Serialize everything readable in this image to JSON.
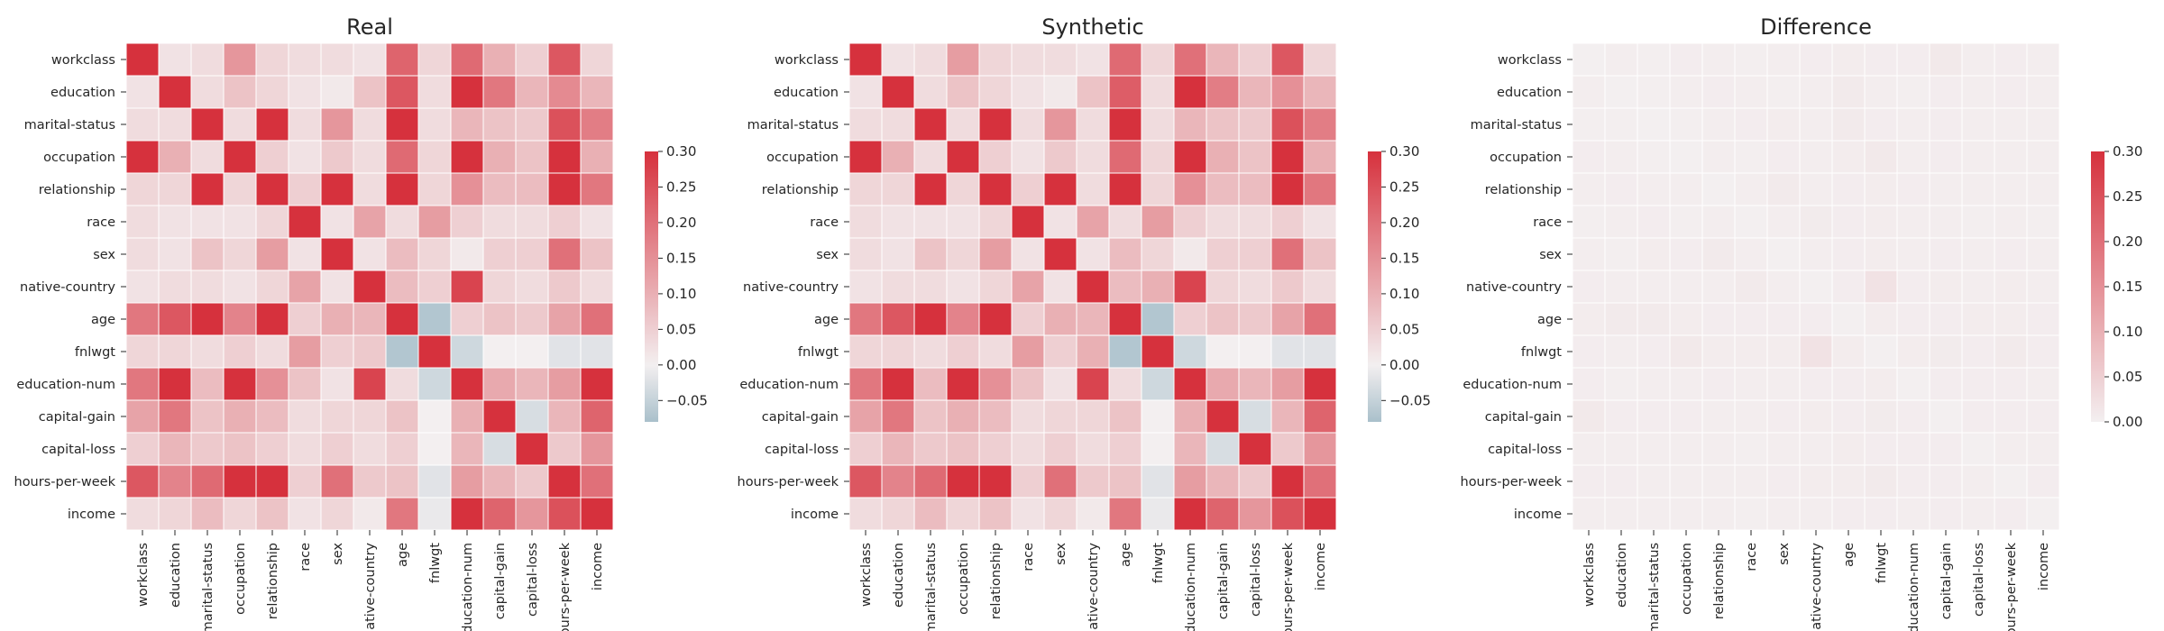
{
  "chart_data": [
    {
      "type": "heatmap",
      "title": "Real",
      "labels": [
        "workclass",
        "education",
        "marital-status",
        "occupation",
        "relationship",
        "race",
        "sex",
        "native-country",
        "age",
        "fnlwgt",
        "education-num",
        "capital-gain",
        "capital-loss",
        "hours-per-week",
        "income"
      ],
      "matrix": [
        [
          0.3,
          0.02,
          0.03,
          0.14,
          0.04,
          0.03,
          0.03,
          0.02,
          0.22,
          0.04,
          0.21,
          0.1,
          0.05,
          0.24,
          0.04
        ],
        [
          0.02,
          0.3,
          0.03,
          0.07,
          0.04,
          0.02,
          0.01,
          0.07,
          0.24,
          0.03,
          0.3,
          0.19,
          0.09,
          0.16,
          0.09
        ],
        [
          0.03,
          0.03,
          0.3,
          0.03,
          0.3,
          0.03,
          0.14,
          0.03,
          0.3,
          0.03,
          0.09,
          0.07,
          0.06,
          0.25,
          0.18
        ],
        [
          0.3,
          0.1,
          0.03,
          0.3,
          0.05,
          0.02,
          0.06,
          0.03,
          0.21,
          0.04,
          0.3,
          0.1,
          0.07,
          0.3,
          0.1
        ],
        [
          0.04,
          0.04,
          0.3,
          0.04,
          0.3,
          0.05,
          0.3,
          0.03,
          0.3,
          0.04,
          0.15,
          0.08,
          0.08,
          0.3,
          0.19
        ],
        [
          0.03,
          0.02,
          0.02,
          0.02,
          0.04,
          0.3,
          0.02,
          0.12,
          0.03,
          0.13,
          0.05,
          0.03,
          0.03,
          0.05,
          0.02
        ],
        [
          0.03,
          0.02,
          0.07,
          0.04,
          0.13,
          0.02,
          0.3,
          0.02,
          0.08,
          0.04,
          0.01,
          0.05,
          0.05,
          0.2,
          0.07
        ],
        [
          0.02,
          0.03,
          0.03,
          0.02,
          0.04,
          0.12,
          0.02,
          0.3,
          0.08,
          0.05,
          0.27,
          0.04,
          0.03,
          0.06,
          0.03
        ],
        [
          0.19,
          0.24,
          0.3,
          0.17,
          0.3,
          0.05,
          0.1,
          0.09,
          0.3,
          -0.07,
          0.05,
          0.07,
          0.06,
          0.12,
          0.2
        ],
        [
          0.04,
          0.04,
          0.03,
          0.05,
          0.03,
          0.13,
          0.05,
          0.06,
          -0.07,
          0.3,
          -0.04,
          0.0,
          0.0,
          -0.02,
          -0.02
        ],
        [
          0.19,
          0.3,
          0.08,
          0.3,
          0.15,
          0.07,
          0.02,
          0.27,
          0.03,
          -0.04,
          0.3,
          0.11,
          0.09,
          0.13,
          0.3
        ],
        [
          0.12,
          0.19,
          0.07,
          0.1,
          0.08,
          0.03,
          0.04,
          0.04,
          0.07,
          0.0,
          0.1,
          0.3,
          -0.03,
          0.09,
          0.22
        ],
        [
          0.05,
          0.09,
          0.06,
          0.07,
          0.05,
          0.03,
          0.05,
          0.03,
          0.05,
          0.0,
          0.09,
          -0.03,
          0.3,
          0.06,
          0.14
        ],
        [
          0.24,
          0.17,
          0.21,
          0.3,
          0.3,
          0.05,
          0.2,
          0.06,
          0.07,
          -0.02,
          0.13,
          0.09,
          0.06,
          0.3,
          0.2
        ],
        [
          0.03,
          0.04,
          0.08,
          0.04,
          0.07,
          0.02,
          0.04,
          0.01,
          0.19,
          -0.01,
          0.3,
          0.22,
          0.14,
          0.25,
          0.3
        ]
      ],
      "colorbar": {
        "min": -0.08,
        "max": 0.3,
        "ticks": [
          0.3,
          0.25,
          0.2,
          0.15,
          0.1,
          0.05,
          0.0,
          -0.05
        ]
      }
    },
    {
      "type": "heatmap",
      "title": "Synthetic",
      "labels": [
        "workclass",
        "education",
        "marital-status",
        "occupation",
        "relationship",
        "race",
        "sex",
        "native-country",
        "age",
        "fnlwgt",
        "education-num",
        "capital-gain",
        "capital-loss",
        "hours-per-week",
        "income"
      ],
      "matrix": [
        [
          0.3,
          0.02,
          0.03,
          0.13,
          0.04,
          0.03,
          0.03,
          0.02,
          0.21,
          0.04,
          0.2,
          0.09,
          0.05,
          0.24,
          0.04
        ],
        [
          0.02,
          0.3,
          0.03,
          0.07,
          0.04,
          0.02,
          0.01,
          0.07,
          0.23,
          0.03,
          0.3,
          0.18,
          0.09,
          0.15,
          0.09
        ],
        [
          0.03,
          0.03,
          0.3,
          0.03,
          0.3,
          0.03,
          0.14,
          0.03,
          0.3,
          0.03,
          0.09,
          0.07,
          0.06,
          0.25,
          0.18
        ],
        [
          0.3,
          0.1,
          0.03,
          0.3,
          0.05,
          0.02,
          0.06,
          0.03,
          0.21,
          0.04,
          0.3,
          0.1,
          0.07,
          0.3,
          0.1
        ],
        [
          0.04,
          0.04,
          0.3,
          0.04,
          0.3,
          0.05,
          0.3,
          0.03,
          0.3,
          0.04,
          0.15,
          0.08,
          0.08,
          0.3,
          0.19
        ],
        [
          0.03,
          0.02,
          0.02,
          0.02,
          0.04,
          0.3,
          0.02,
          0.12,
          0.03,
          0.13,
          0.05,
          0.03,
          0.03,
          0.05,
          0.02
        ],
        [
          0.03,
          0.02,
          0.07,
          0.04,
          0.13,
          0.02,
          0.3,
          0.02,
          0.08,
          0.04,
          0.01,
          0.05,
          0.05,
          0.2,
          0.07
        ],
        [
          0.02,
          0.03,
          0.03,
          0.02,
          0.04,
          0.12,
          0.02,
          0.3,
          0.08,
          0.1,
          0.27,
          0.04,
          0.03,
          0.06,
          0.03
        ],
        [
          0.19,
          0.24,
          0.3,
          0.17,
          0.3,
          0.05,
          0.1,
          0.09,
          0.3,
          -0.07,
          0.05,
          0.07,
          0.06,
          0.12,
          0.2
        ],
        [
          0.04,
          0.04,
          0.03,
          0.05,
          0.03,
          0.13,
          0.05,
          0.1,
          -0.07,
          0.3,
          -0.04,
          0.0,
          0.0,
          -0.02,
          -0.02
        ],
        [
          0.19,
          0.3,
          0.08,
          0.3,
          0.15,
          0.07,
          0.02,
          0.27,
          0.03,
          -0.04,
          0.3,
          0.11,
          0.09,
          0.13,
          0.3
        ],
        [
          0.12,
          0.19,
          0.07,
          0.1,
          0.08,
          0.03,
          0.04,
          0.04,
          0.07,
          0.0,
          0.1,
          0.3,
          -0.03,
          0.09,
          0.22
        ],
        [
          0.05,
          0.09,
          0.06,
          0.07,
          0.05,
          0.03,
          0.05,
          0.03,
          0.05,
          0.0,
          0.09,
          -0.03,
          0.3,
          0.06,
          0.14
        ],
        [
          0.24,
          0.17,
          0.21,
          0.3,
          0.3,
          0.05,
          0.2,
          0.06,
          0.07,
          -0.02,
          0.13,
          0.09,
          0.06,
          0.3,
          0.2
        ],
        [
          0.03,
          0.04,
          0.08,
          0.04,
          0.07,
          0.02,
          0.04,
          0.01,
          0.19,
          -0.01,
          0.3,
          0.22,
          0.14,
          0.25,
          0.3
        ]
      ],
      "colorbar": {
        "min": -0.08,
        "max": 0.3,
        "ticks": [
          0.3,
          0.25,
          0.2,
          0.15,
          0.1,
          0.05,
          0.0,
          -0.05
        ]
      }
    },
    {
      "type": "heatmap",
      "title": "Difference",
      "labels": [
        "workclass",
        "education",
        "marital-status",
        "occupation",
        "relationship",
        "race",
        "sex",
        "native-country",
        "age",
        "fnlwgt",
        "education-num",
        "capital-gain",
        "capital-loss",
        "hours-per-week",
        "income"
      ],
      "matrix": [
        [
          0.0,
          0.003,
          0.002,
          0.004,
          0.003,
          0.002,
          0.003,
          0.004,
          0.005,
          0.004,
          0.004,
          0.01,
          0.003,
          0.004,
          0.003
        ],
        [
          0.003,
          0.0,
          0.002,
          0.003,
          0.004,
          0.003,
          0.002,
          0.003,
          0.008,
          0.003,
          0.002,
          0.004,
          0.003,
          0.004,
          0.003
        ],
        [
          0.002,
          0.002,
          0.0,
          0.002,
          0.003,
          0.004,
          0.005,
          0.003,
          0.008,
          0.004,
          0.003,
          0.004,
          0.003,
          0.003,
          0.003
        ],
        [
          0.004,
          0.003,
          0.002,
          0.0,
          0.003,
          0.002,
          0.004,
          0.003,
          0.005,
          0.01,
          0.003,
          0.004,
          0.003,
          0.003,
          0.003
        ],
        [
          0.003,
          0.004,
          0.003,
          0.003,
          0.0,
          0.003,
          0.008,
          0.003,
          0.004,
          0.005,
          0.004,
          0.003,
          0.003,
          0.003,
          0.003
        ],
        [
          0.002,
          0.003,
          0.004,
          0.002,
          0.003,
          0.0,
          0.003,
          0.006,
          0.004,
          0.005,
          0.003,
          0.003,
          0.002,
          0.003,
          0.002
        ],
        [
          0.003,
          0.002,
          0.005,
          0.004,
          0.008,
          0.003,
          0.0,
          0.003,
          0.004,
          0.005,
          0.003,
          0.004,
          0.003,
          0.004,
          0.003
        ],
        [
          0.004,
          0.003,
          0.003,
          0.003,
          0.003,
          0.008,
          0.003,
          0.0,
          0.004,
          0.02,
          0.004,
          0.005,
          0.003,
          0.005,
          0.003
        ],
        [
          0.005,
          0.008,
          0.008,
          0.005,
          0.004,
          0.004,
          0.004,
          0.004,
          0.0,
          0.005,
          0.004,
          0.004,
          0.005,
          0.005,
          0.004
        ],
        [
          0.004,
          0.003,
          0.004,
          0.01,
          0.005,
          0.005,
          0.005,
          0.02,
          0.005,
          0.0,
          0.005,
          0.006,
          0.004,
          0.008,
          0.004
        ],
        [
          0.004,
          0.002,
          0.003,
          0.003,
          0.004,
          0.003,
          0.003,
          0.004,
          0.004,
          0.005,
          0.0,
          0.004,
          0.004,
          0.004,
          0.003
        ],
        [
          0.01,
          0.004,
          0.004,
          0.004,
          0.003,
          0.003,
          0.004,
          0.005,
          0.004,
          0.006,
          0.004,
          0.0,
          0.004,
          0.004,
          0.004
        ],
        [
          0.003,
          0.003,
          0.003,
          0.003,
          0.003,
          0.002,
          0.003,
          0.003,
          0.005,
          0.004,
          0.004,
          0.004,
          0.0,
          0.003,
          0.003
        ],
        [
          0.004,
          0.004,
          0.003,
          0.003,
          0.003,
          0.003,
          0.004,
          0.005,
          0.005,
          0.008,
          0.004,
          0.004,
          0.003,
          0.0,
          0.004
        ],
        [
          0.003,
          0.003,
          0.003,
          0.003,
          0.003,
          0.002,
          0.003,
          0.003,
          0.004,
          0.004,
          0.003,
          0.004,
          0.003,
          0.004,
          0.0
        ]
      ],
      "colorbar": {
        "min": 0.0,
        "max": 0.3,
        "ticks": [
          0.3,
          0.25,
          0.2,
          0.15,
          0.1,
          0.05,
          0.0
        ]
      }
    }
  ],
  "colors": {
    "high": "#d6313d",
    "zero": "#f3eff0",
    "low": "#a9c0cb",
    "grid": "#ffffff",
    "text": "#262626"
  }
}
